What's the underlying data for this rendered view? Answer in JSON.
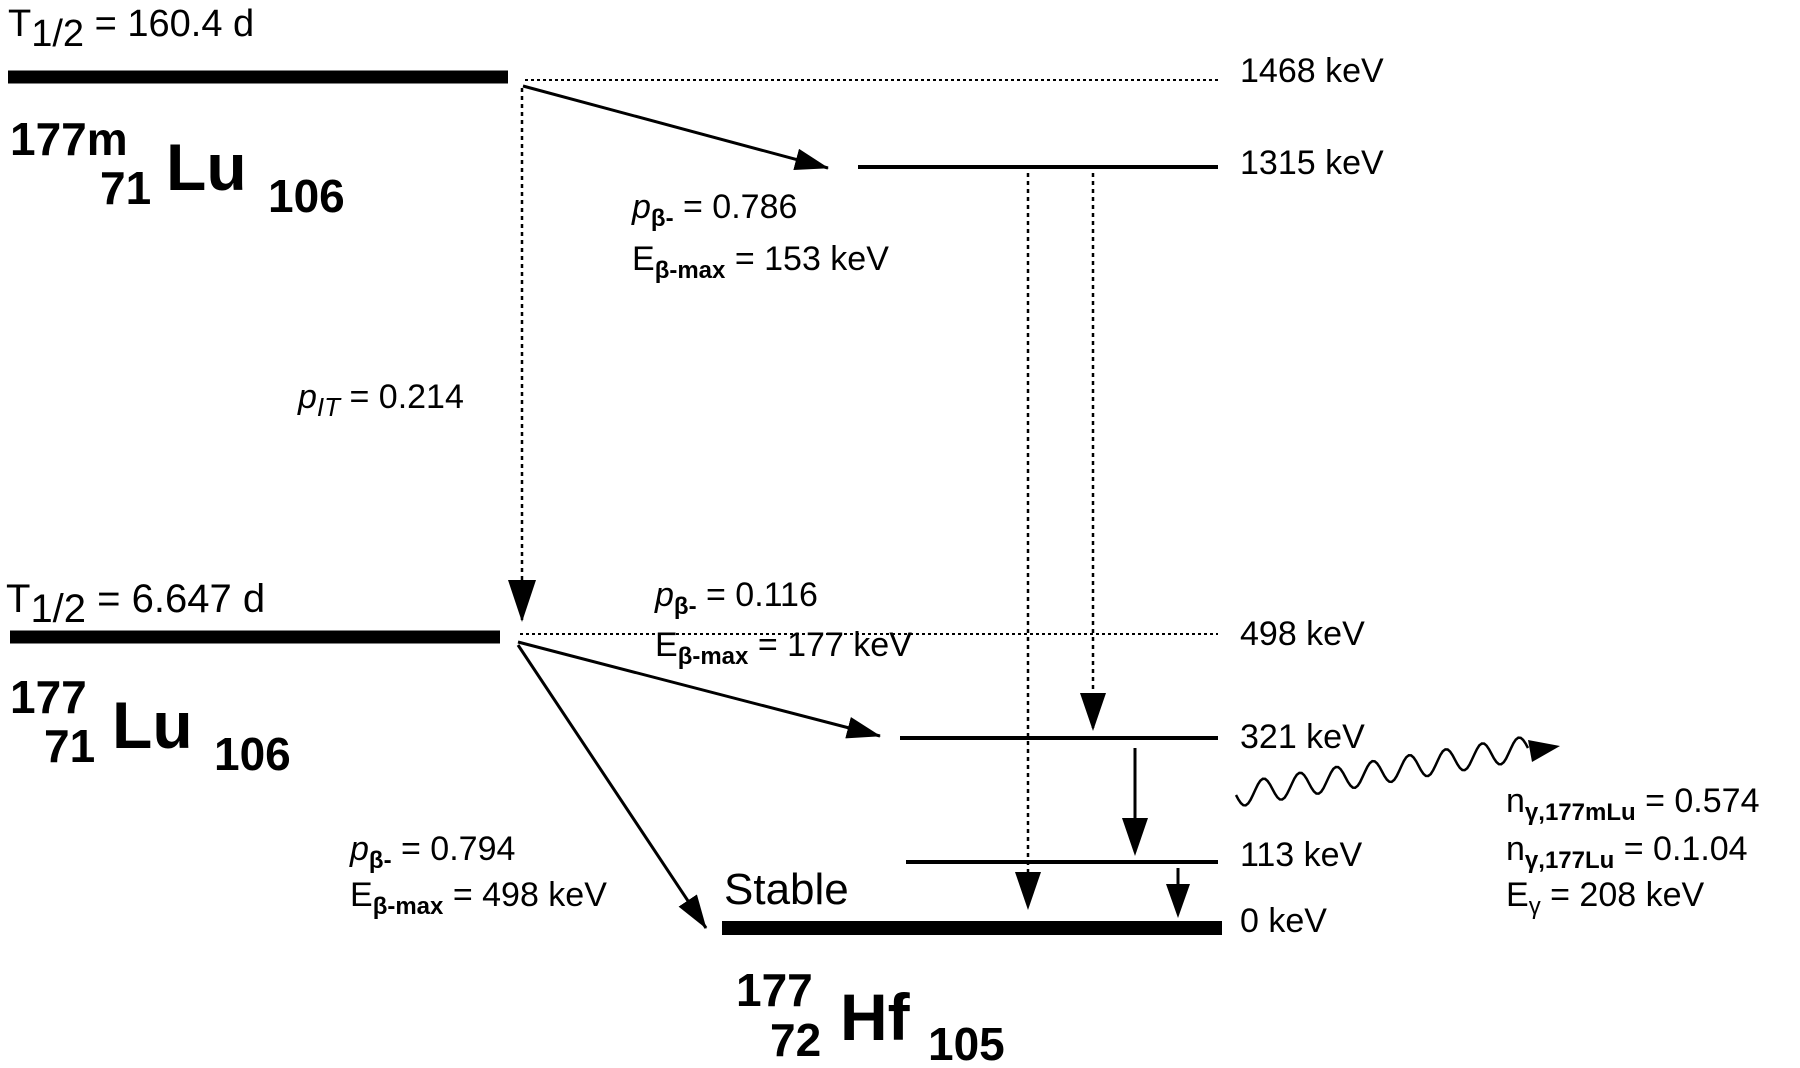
{
  "colors": {
    "ink": "#000000",
    "background": "#ffffff"
  },
  "parent_metastable": {
    "halflife_prefix": "T",
    "halflife_sub": "1/2",
    "halflife_value": " = 160.4 d",
    "mass": "177m",
    "atomic": "71",
    "element": "Lu",
    "neutron": "106"
  },
  "parent_ground": {
    "halflife_prefix": "T",
    "halflife_sub": "1/2",
    "halflife_value": " = 6.647 d",
    "mass": "177",
    "atomic": "71",
    "element": "Lu",
    "neutron": "106"
  },
  "daughter": {
    "stable_label": "Stable",
    "mass": "177",
    "atomic": "72",
    "element": "Hf",
    "neutron": "105"
  },
  "levels": {
    "l1468": "1468 keV",
    "l1315": "1315 keV",
    "l498": "498 keV",
    "l321": "321 keV",
    "l113": "113 keV",
    "l0": "0 keV"
  },
  "transitions": {
    "beta_m_1315": {
      "p_sym": "p",
      "p_sub": "β-",
      "p_val": " = 0.786",
      "e_sym": "E",
      "e_sub": "β-max",
      "e_val": " = 153 keV"
    },
    "it": {
      "p_sym": "p",
      "p_sub": "IT",
      "p_val": " = 0.214"
    },
    "beta_g_321": {
      "p_sym": "p",
      "p_sub": "β-",
      "p_val": " = 0.116",
      "e_sym": "E",
      "e_sub": "β-max",
      "e_val": " = 177 keV"
    },
    "beta_g_0": {
      "p_sym": "p",
      "p_sub": "β-",
      "p_val": " = 0.794",
      "e_sym": "E",
      "e_sub": "β-max",
      "e_val": " = 498 keV"
    }
  },
  "gamma": {
    "n1_sym": "n",
    "n1_sub": "γ,177mLu",
    "n1_val": " = 0.574",
    "n2_sym": "n",
    "n2_sub": "γ,177Lu",
    "n2_val": " = 0.1.04",
    "e_sym": "E",
    "e_sub": "γ",
    "e_val": " = 208 keV"
  }
}
